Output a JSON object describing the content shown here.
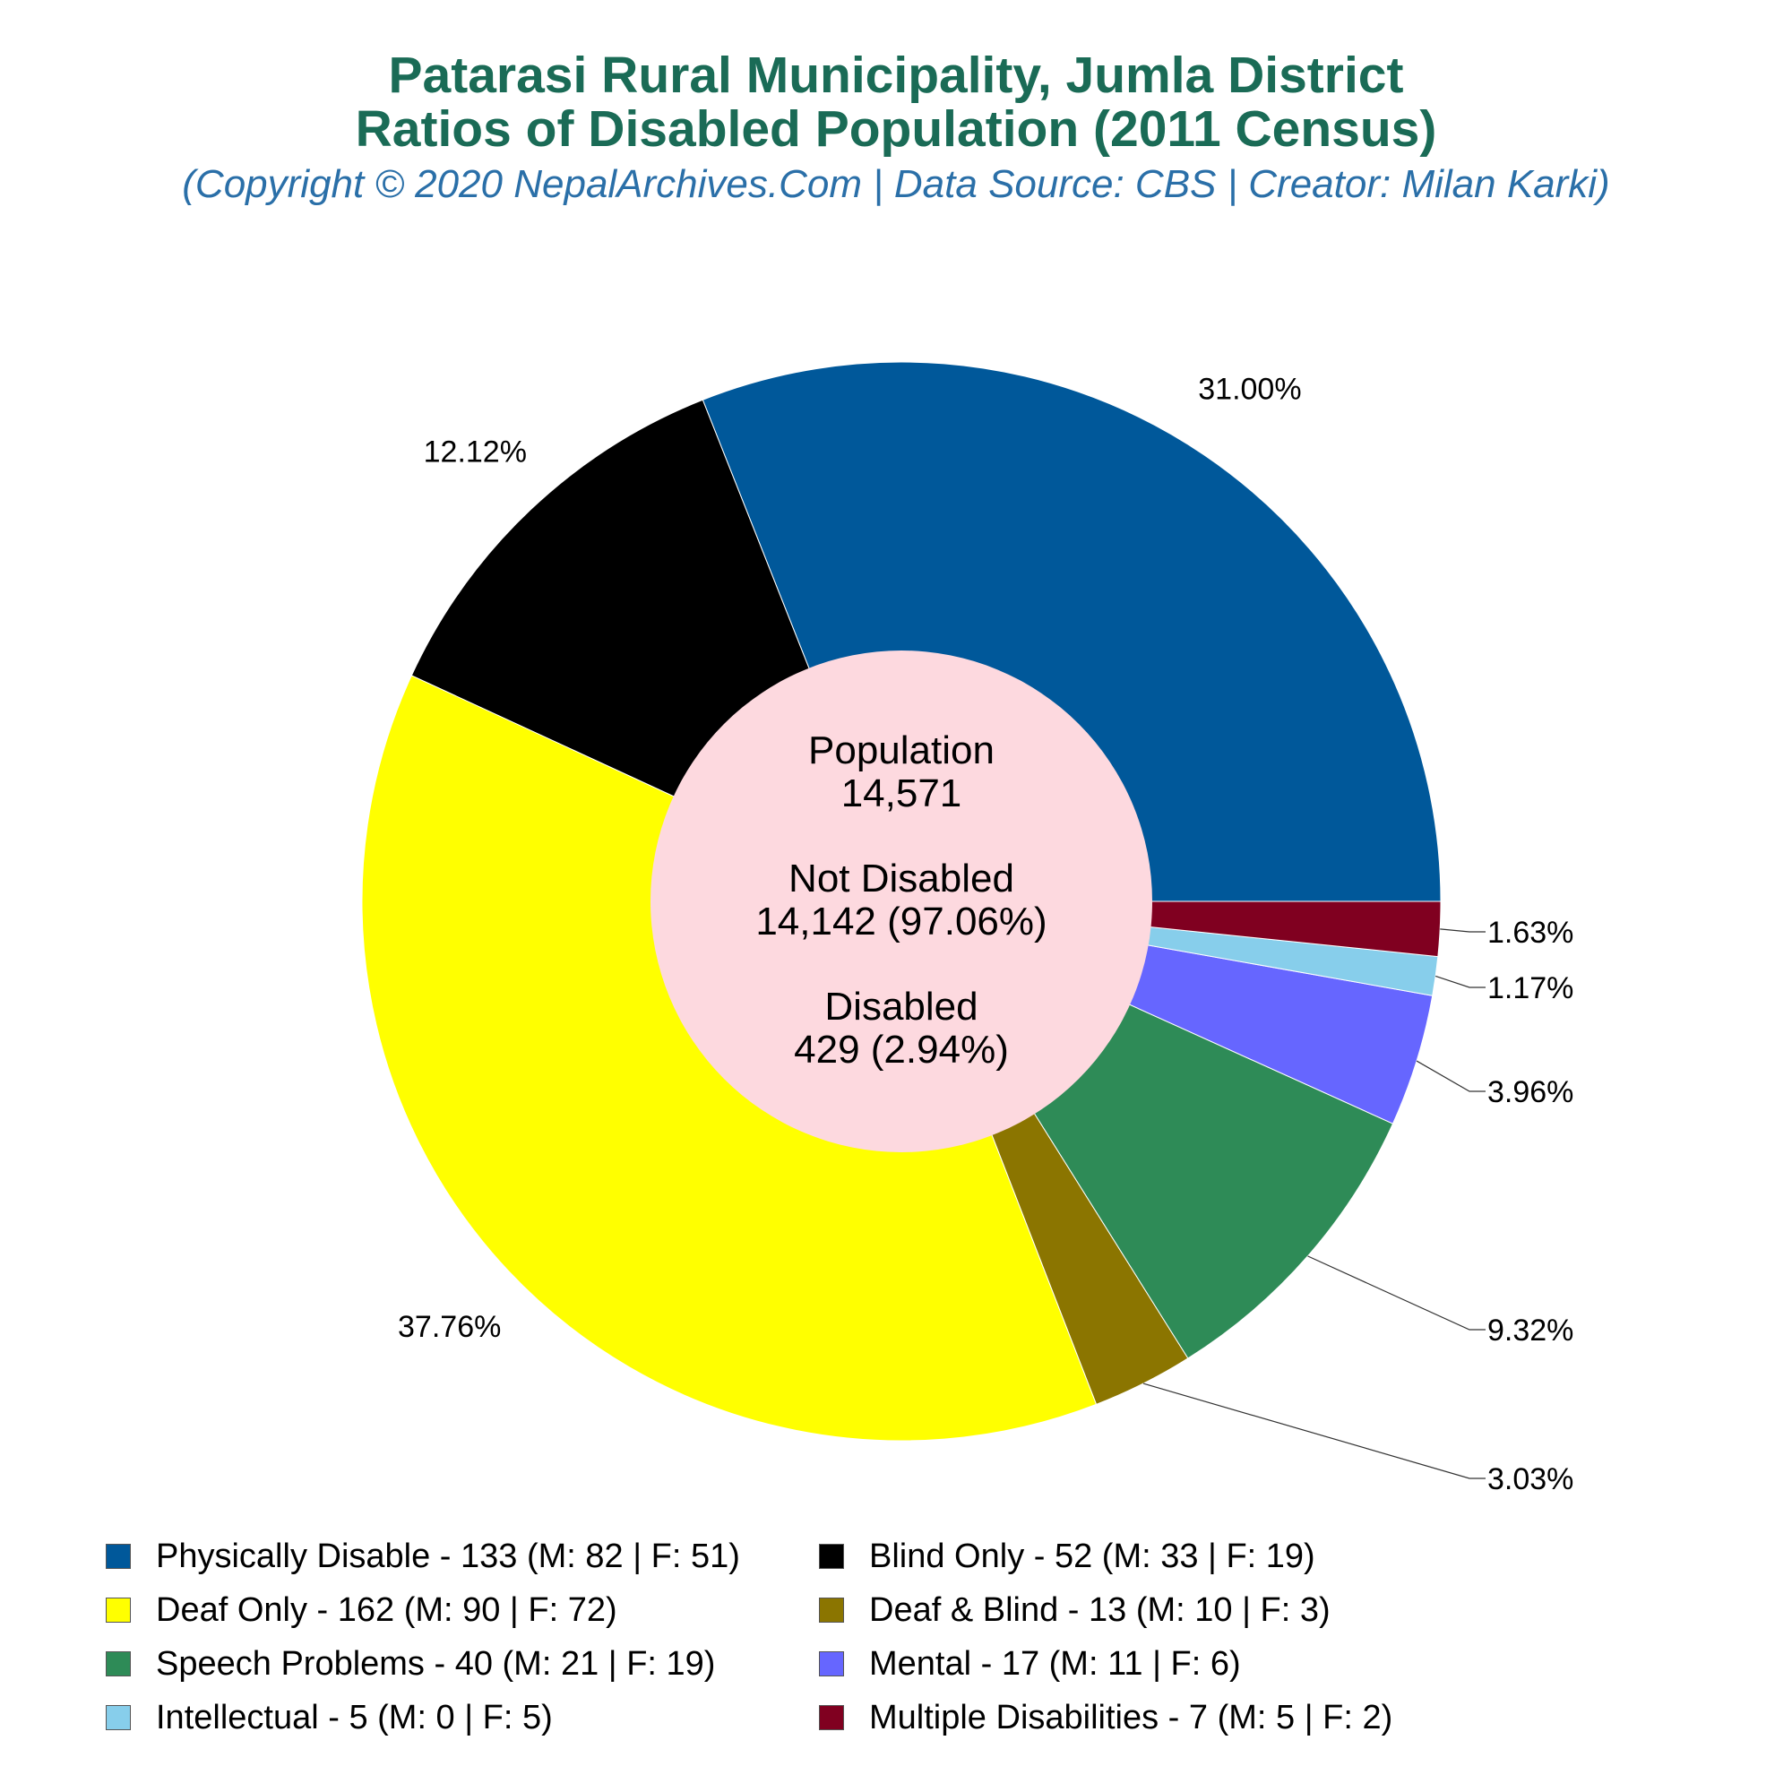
{
  "title_line1": "Patarasi Rural Municipality, Jumla District",
  "title_line2": "Ratios of Disabled Population (2011 Census)",
  "subtitle": "(Copyright © 2020 NepalArchives.Com | Data Source: CBS | Creator: Milan Karki)",
  "center": {
    "population_label": "Population",
    "population_value": "14,571",
    "not_disabled_label": "Not Disabled",
    "not_disabled_value": "14,142 (97.06%)",
    "disabled_label": "Disabled",
    "disabled_value": "429 (2.94%)"
  },
  "chart_data": {
    "type": "pie",
    "donut": true,
    "start_angle_deg": 0,
    "direction": "counterclockwise",
    "slices": [
      {
        "name": "Physically Disable",
        "value": 133,
        "male": 82,
        "female": 51,
        "percent_label": "31.00%",
        "color": "#00589a",
        "legend": "Physically Disable - 133 (M: 82 | F: 51)"
      },
      {
        "name": "Blind Only",
        "value": 52,
        "male": 33,
        "female": 19,
        "percent_label": "12.12%",
        "color": "#000000",
        "legend": "Blind Only - 52 (M: 33 | F: 19)"
      },
      {
        "name": "Deaf Only",
        "value": 162,
        "male": 90,
        "female": 72,
        "percent_label": "37.76%",
        "color": "#ffff00",
        "legend": "Deaf Only - 162 (M: 90 | F: 72)"
      },
      {
        "name": "Deaf & Blind",
        "value": 13,
        "male": 10,
        "female": 3,
        "percent_label": "3.03%",
        "color": "#8b7500",
        "legend": "Deaf & Blind - 13 (M: 10 | F: 3)"
      },
      {
        "name": "Speech Problems",
        "value": 40,
        "male": 21,
        "female": 19,
        "percent_label": "9.32%",
        "color": "#2e8b57",
        "legend": "Speech Problems - 40 (M: 21 | F: 19)"
      },
      {
        "name": "Mental",
        "value": 17,
        "male": 11,
        "female": 6,
        "percent_label": "3.96%",
        "color": "#6666ff",
        "legend": "Mental - 17 (M: 11 | F: 6)"
      },
      {
        "name": "Intellectual",
        "value": 5,
        "male": 0,
        "female": 5,
        "percent_label": "1.17%",
        "color": "#87ceeb",
        "legend": "Intellectual - 5 (M: 0 | F: 5)"
      },
      {
        "name": "Multiple Disabilities",
        "value": 7,
        "male": 5,
        "female": 2,
        "percent_label": "1.63%",
        "color": "#800020",
        "legend": "Multiple Disabilities - 7 (M: 5 | F: 2)"
      }
    ],
    "hole_color": "#fdd9df",
    "legend_placement": "bottom",
    "legend_order": [
      "Physically Disable",
      "Blind Only",
      "Deaf Only",
      "Deaf & Blind",
      "Speech Problems",
      "Mental",
      "Intellectual",
      "Multiple Disabilities"
    ]
  }
}
